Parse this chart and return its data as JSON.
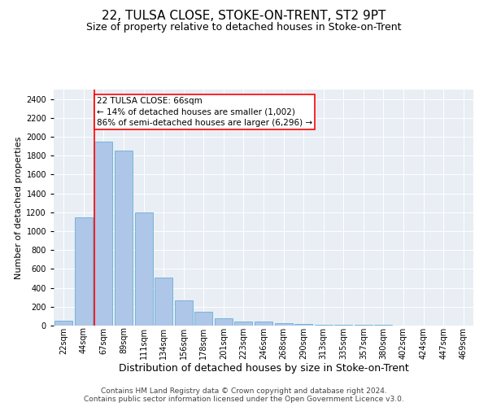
{
  "title": "22, TULSA CLOSE, STOKE-ON-TRENT, ST2 9PT",
  "subtitle": "Size of property relative to detached houses in Stoke-on-Trent",
  "xlabel": "Distribution of detached houses by size in Stoke-on-Trent",
  "ylabel": "Number of detached properties",
  "categories": [
    "22sqm",
    "44sqm",
    "67sqm",
    "89sqm",
    "111sqm",
    "134sqm",
    "156sqm",
    "178sqm",
    "201sqm",
    "223sqm",
    "246sqm",
    "268sqm",
    "290sqm",
    "313sqm",
    "335sqm",
    "357sqm",
    "380sqm",
    "402sqm",
    "424sqm",
    "447sqm",
    "469sqm"
  ],
  "values": [
    50,
    1150,
    1950,
    1850,
    1200,
    510,
    265,
    150,
    75,
    40,
    40,
    30,
    15,
    10,
    10,
    5,
    5,
    3,
    2,
    2,
    2
  ],
  "bar_color": "#aec6e8",
  "bar_edge_color": "#6aaed6",
  "vline_x_index": 2,
  "vline_color": "red",
  "annotation_text": "22 TULSA CLOSE: 66sqm\n← 14% of detached houses are smaller (1,002)\n86% of semi-detached houses are larger (6,296) →",
  "annotation_box_color": "white",
  "annotation_box_edge": "red",
  "ylim": [
    0,
    2500
  ],
  "yticks": [
    0,
    200,
    400,
    600,
    800,
    1000,
    1200,
    1400,
    1600,
    1800,
    2000,
    2200,
    2400
  ],
  "bg_color": "#e8eef4",
  "footer1": "Contains HM Land Registry data © Crown copyright and database right 2024.",
  "footer2": "Contains public sector information licensed under the Open Government Licence v3.0.",
  "title_fontsize": 11,
  "subtitle_fontsize": 9,
  "xlabel_fontsize": 9,
  "ylabel_fontsize": 8,
  "tick_fontsize": 7,
  "annotation_fontsize": 7.5,
  "footer_fontsize": 6.5
}
